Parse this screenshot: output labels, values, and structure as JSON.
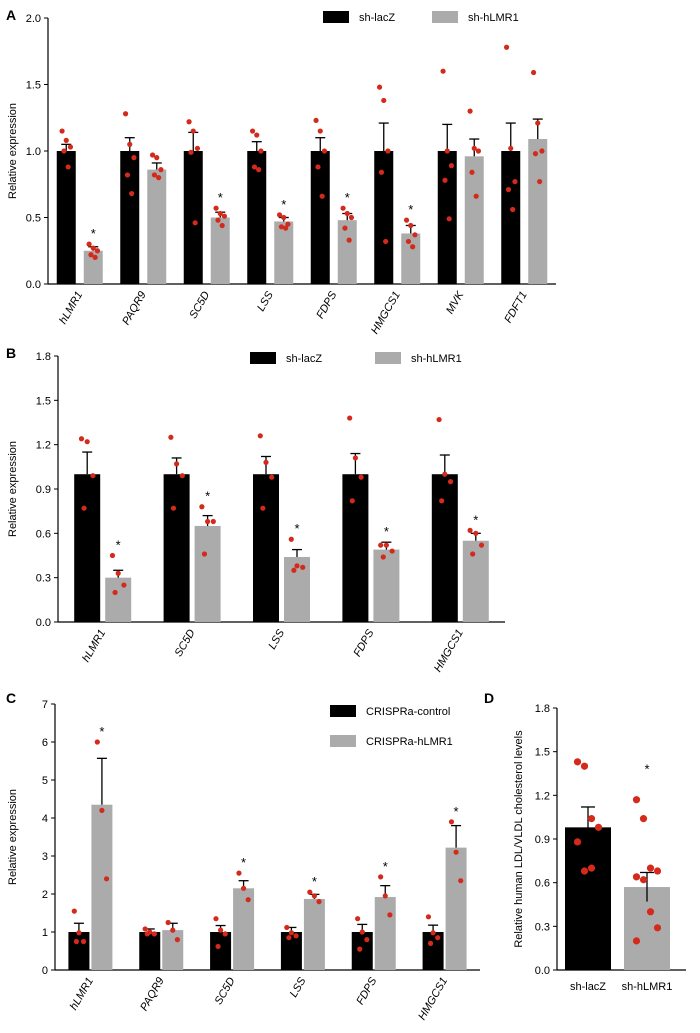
{
  "colors": {
    "control": "#000000",
    "treated": "#ababab",
    "dot": "#d42a1c"
  },
  "chart_data": [
    {
      "panel": "A",
      "type": "bar",
      "ylabel": "Relative expression",
      "ylim": [
        0,
        2.0
      ],
      "yticks": [
        "0.0",
        "0.5",
        "1.0",
        "1.5",
        "2.0"
      ],
      "categories": [
        "hLMR1",
        "PAQR9",
        "SC5D",
        "LSS",
        "FDPS",
        "HMGCS1",
        "MVK",
        "FDFT1"
      ],
      "legend_position": "top",
      "series": [
        {
          "name": "sh-lacZ",
          "values": [
            1.0,
            1.0,
            1.0,
            1.0,
            1.0,
            1.0,
            1.0,
            1.0
          ],
          "sem": [
            0.05,
            0.1,
            0.14,
            0.07,
            0.1,
            0.21,
            0.2,
            0.21
          ],
          "points": [
            [
              1.15,
              1.08,
              1.03,
              1.0,
              0.88
            ],
            [
              1.28,
              1.05,
              0.95,
              0.82,
              0.68
            ],
            [
              1.22,
              1.15,
              1.02,
              0.99,
              0.46
            ],
            [
              1.15,
              1.12,
              1.0,
              0.88,
              0.86
            ],
            [
              1.23,
              1.15,
              1.0,
              0.88,
              0.66
            ],
            [
              1.48,
              1.38,
              1.0,
              0.84,
              0.32
            ],
            [
              1.6,
              1.0,
              0.89,
              0.78,
              0.49
            ],
            [
              1.78,
              1.02,
              0.77,
              0.71,
              0.56
            ]
          ]
        },
        {
          "name": "sh-hLMR1",
          "values": [
            0.25,
            0.86,
            0.5,
            0.47,
            0.48,
            0.38,
            0.96,
            1.09
          ],
          "sem": [
            0.03,
            0.05,
            0.04,
            0.03,
            0.05,
            0.06,
            0.13,
            0.15
          ],
          "points": [
            [
              0.3,
              0.27,
              0.25,
              0.22,
              0.2
            ],
            [
              0.97,
              0.95,
              0.86,
              0.82,
              0.8
            ],
            [
              0.57,
              0.53,
              0.51,
              0.48,
              0.44
            ],
            [
              0.52,
              0.5,
              0.45,
              0.43,
              0.42
            ],
            [
              0.57,
              0.53,
              0.5,
              0.42,
              0.33
            ],
            [
              0.48,
              0.44,
              0.37,
              0.32,
              0.28
            ],
            [
              1.3,
              1.02,
              1.0,
              0.84,
              0.66
            ],
            [
              1.59,
              1.21,
              1.0,
              0.98,
              0.77
            ]
          ]
        }
      ],
      "significant": [
        true,
        false,
        true,
        true,
        true,
        true,
        false,
        false
      ]
    },
    {
      "panel": "B",
      "type": "bar",
      "ylabel": "Relative expression",
      "ylim": [
        0,
        1.8
      ],
      "yticks": [
        "0.0",
        "0.3",
        "0.6",
        "0.9",
        "1.2",
        "1.5",
        "1.8"
      ],
      "categories": [
        "hLMR1",
        "SC5D",
        "LSS",
        "FDPS",
        "HMGCS1"
      ],
      "legend_position": "top",
      "series": [
        {
          "name": "sh-lacZ",
          "values": [
            1.0,
            1.0,
            1.0,
            1.0,
            1.0
          ],
          "sem": [
            0.15,
            0.11,
            0.12,
            0.14,
            0.13
          ],
          "points": [
            [
              1.24,
              1.22,
              0.99,
              0.77
            ],
            [
              1.25,
              1.07,
              0.99,
              0.77
            ],
            [
              1.26,
              1.08,
              0.98,
              0.77
            ],
            [
              1.38,
              1.11,
              0.98,
              0.82
            ],
            [
              1.37,
              1.0,
              0.95,
              0.82
            ]
          ]
        },
        {
          "name": "sh-hLMR1",
          "values": [
            0.3,
            0.65,
            0.44,
            0.49,
            0.55
          ],
          "sem": [
            0.05,
            0.07,
            0.05,
            0.05,
            0.05
          ],
          "points": [
            [
              0.45,
              0.33,
              0.25,
              0.2
            ],
            [
              0.78,
              0.68,
              0.68,
              0.46
            ],
            [
              0.56,
              0.38,
              0.37,
              0.35
            ],
            [
              0.52,
              0.52,
              0.48,
              0.44
            ],
            [
              0.62,
              0.6,
              0.52,
              0.46
            ]
          ]
        }
      ],
      "significant": [
        true,
        true,
        true,
        true,
        true
      ]
    },
    {
      "panel": "C",
      "type": "bar",
      "ylabel": "Relative expression",
      "ylim": [
        0,
        7
      ],
      "yticks": [
        "0",
        "1",
        "2",
        "3",
        "4",
        "5",
        "6",
        "7"
      ],
      "categories": [
        "hLMR1",
        "PAQR9",
        "SC5D",
        "LSS",
        "FDPS",
        "HMGCS1"
      ],
      "legend_position": "top-right",
      "series": [
        {
          "name": "CRISPRa-control",
          "values": [
            1.0,
            1.0,
            1.0,
            1.0,
            1.0,
            1.0
          ],
          "sem": [
            0.23,
            0.08,
            0.17,
            0.12,
            0.2,
            0.18
          ],
          "points": [
            [
              1.55,
              0.98,
              0.75,
              0.75
            ],
            [
              1.08,
              1.0,
              0.95,
              0.95
            ],
            [
              1.35,
              1.05,
              0.95,
              0.62
            ],
            [
              1.12,
              0.98,
              0.9,
              0.85
            ],
            [
              1.35,
              1.0,
              0.8,
              0.55
            ],
            [
              1.4,
              0.98,
              0.85,
              0.7
            ]
          ]
        },
        {
          "name": "CRISPRa-hLMR1",
          "values": [
            4.35,
            1.05,
            2.15,
            1.87,
            1.92,
            3.22
          ],
          "sem": [
            1.22,
            0.18,
            0.2,
            0.12,
            0.3,
            0.58
          ],
          "points": [
            [
              6.0,
              4.2,
              2.4
            ],
            [
              1.25,
              1.05,
              0.8
            ],
            [
              2.55,
              2.15,
              1.85
            ],
            [
              2.05,
              1.95,
              1.8
            ],
            [
              2.45,
              1.95,
              1.45
            ],
            [
              3.9,
              3.1,
              2.35
            ]
          ]
        }
      ],
      "significant": [
        true,
        false,
        true,
        true,
        true,
        true
      ]
    },
    {
      "panel": "D",
      "type": "bar",
      "ylabel": "Relative human LDL/VLDL cholesterol levels",
      "ylim": [
        0,
        1.8
      ],
      "yticks": [
        "0.0",
        "0.3",
        "0.6",
        "0.9",
        "1.2",
        "1.5",
        "1.8"
      ],
      "categories": [
        "sh-lacZ",
        "sh-hLMR1"
      ],
      "values": [
        0.98,
        0.57
      ],
      "sem": [
        0.14,
        0.1
      ],
      "points": [
        [
          1.43,
          1.4,
          1.04,
          0.98,
          0.88,
          0.68,
          0.7
        ],
        [
          1.17,
          1.04,
          0.7,
          0.68,
          0.64,
          0.62,
          0.4,
          0.29,
          0.2
        ]
      ],
      "significant": [
        false,
        true
      ]
    }
  ]
}
